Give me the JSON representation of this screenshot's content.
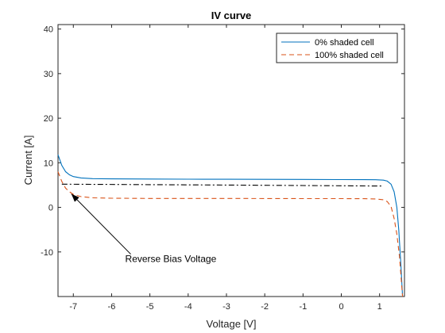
{
  "chart_data": {
    "type": "line",
    "title": "IV curve",
    "xlabel": "Voltage [V]",
    "ylabel": "Current [A]",
    "xlim": [
      -7.4,
      1.65
    ],
    "ylim": [
      -20,
      41
    ],
    "xticks": [
      -7,
      -6,
      -5,
      -4,
      -3,
      -2,
      -1,
      0,
      1
    ],
    "yticks": [
      -10,
      0,
      10,
      20,
      30,
      40
    ],
    "grid": false,
    "legend_position": "top-right",
    "series": [
      {
        "name": "0% shaded cell",
        "color": "#0072BD",
        "style": "solid",
        "points": [
          [
            -7.4,
            11.8
          ],
          [
            -7.3,
            9.4
          ],
          [
            -7.2,
            8.0
          ],
          [
            -7.1,
            7.3
          ],
          [
            -7.0,
            6.9
          ],
          [
            -6.8,
            6.6
          ],
          [
            -6.5,
            6.45
          ],
          [
            -6.0,
            6.4
          ],
          [
            -5.0,
            6.35
          ],
          [
            -4.0,
            6.32
          ],
          [
            -3.0,
            6.3
          ],
          [
            -2.0,
            6.28
          ],
          [
            -1.0,
            6.26
          ],
          [
            0.0,
            6.24
          ],
          [
            0.6,
            6.22
          ],
          [
            0.9,
            6.2
          ],
          [
            1.1,
            6.1
          ],
          [
            1.2,
            5.9
          ],
          [
            1.3,
            5.2
          ],
          [
            1.38,
            3.5
          ],
          [
            1.45,
            0.0
          ],
          [
            1.5,
            -5.0
          ],
          [
            1.55,
            -12.0
          ],
          [
            1.6,
            -20.0
          ]
        ]
      },
      {
        "name": "100% shaded cell",
        "color": "#D95319",
        "style": "dashed",
        "points": [
          [
            -7.4,
            8.0
          ],
          [
            -7.3,
            5.8
          ],
          [
            -7.2,
            4.3
          ],
          [
            -7.1,
            3.5
          ],
          [
            -7.0,
            2.9
          ],
          [
            -6.8,
            2.4
          ],
          [
            -6.5,
            2.15
          ],
          [
            -6.0,
            2.05
          ],
          [
            -5.0,
            2.0
          ],
          [
            -4.0,
            2.0
          ],
          [
            -3.0,
            2.0
          ],
          [
            -2.0,
            1.98
          ],
          [
            -1.0,
            1.97
          ],
          [
            0.0,
            1.96
          ],
          [
            0.6,
            1.95
          ],
          [
            0.9,
            1.9
          ],
          [
            1.1,
            1.7
          ],
          [
            1.2,
            1.3
          ],
          [
            1.3,
            0.2
          ],
          [
            1.38,
            -2.5
          ],
          [
            1.45,
            -6.0
          ],
          [
            1.52,
            -11.0
          ],
          [
            1.6,
            -20.0
          ]
        ]
      },
      {
        "name": "",
        "color": "#000000",
        "style": "dashdot",
        "points": [
          [
            -7.3,
            5.2
          ],
          [
            -5.0,
            5.1
          ],
          [
            -3.0,
            5.0
          ],
          [
            -1.0,
            4.9
          ],
          [
            0.0,
            4.85
          ],
          [
            1.0,
            4.8
          ],
          [
            1.1,
            4.8
          ]
        ]
      }
    ],
    "annotations": [
      {
        "text": "Reverse Bias Voltage",
        "arrow_from": [
          -5.5,
          -10.5
        ],
        "arrow_to": [
          -7.05,
          3.0
        ]
      }
    ]
  }
}
